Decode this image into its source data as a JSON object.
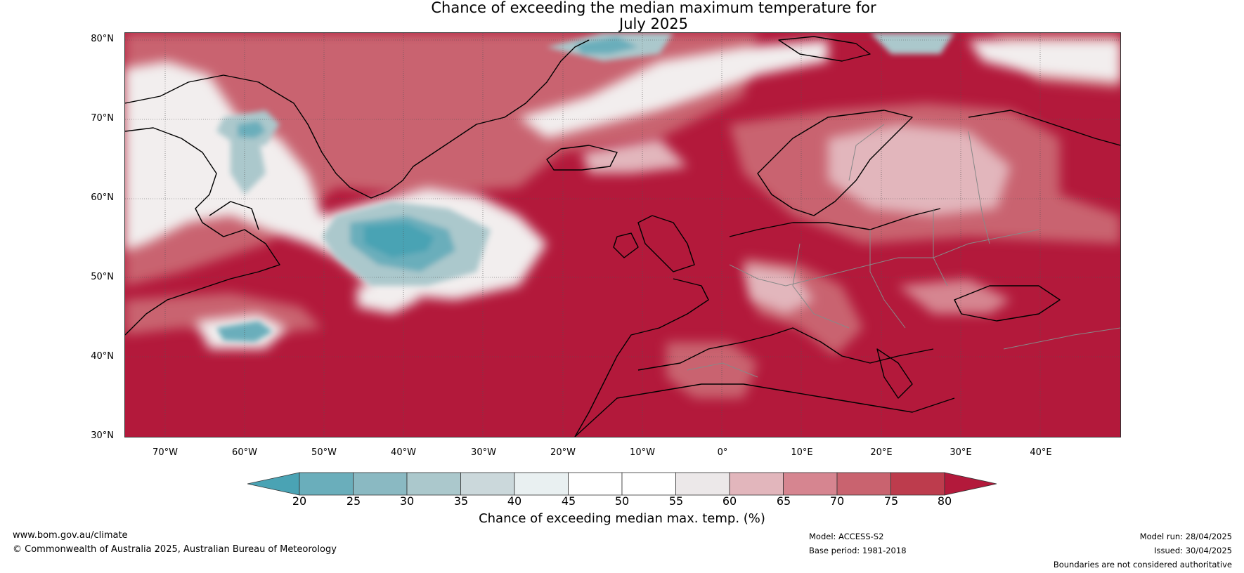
{
  "title": {
    "line1": "Chance of exceeding the median maximum temperature for",
    "line2": "July 2025"
  },
  "axes": {
    "lat_labels": [
      "80°N",
      "70°N",
      "60°N",
      "50°N",
      "40°N",
      "30°N"
    ],
    "lon_labels": [
      "70°W",
      "60°W",
      "50°W",
      "40°W",
      "30°W",
      "20°W",
      "10°W",
      "0°",
      "10°E",
      "20°E",
      "30°E",
      "40°E"
    ],
    "lat_range": [
      30,
      81
    ],
    "lon_range": [
      -75,
      50
    ]
  },
  "colorbar": {
    "title": "Chance of exceeding median max. temp. (%)",
    "ticks": [
      "20",
      "25",
      "30",
      "35",
      "40",
      "45",
      "50",
      "55",
      "60",
      "65",
      "70",
      "75",
      "80"
    ],
    "colors": [
      "#4aa3b4",
      "#6aaebb",
      "#8ab9c2",
      "#abc8cc",
      "#cbd8db",
      "#e9f0f1",
      "#ffffff",
      "#ffffff",
      "#ece8e9",
      "#e2b6bc",
      "#d68590",
      "#c9636f",
      "#bd3c4d",
      "#b3193b"
    ]
  },
  "map_colors": {
    "ocean_warm": "#b3193b",
    "ocean_mid": "#c9636f",
    "light_red": "#e2b6bc",
    "neutral": "#f2eeee",
    "cool_light": "#abc8cc",
    "cool": "#4aa3b4",
    "coast": "#000000",
    "border": "#888888"
  },
  "footer": {
    "url": "www.bom.gov.au/climate",
    "copyright": "© Commonwealth of Australia 2025, Australian Bureau of Meteorology",
    "model": "Model: ACCESS-S2",
    "base_period": "Base period: 1981-2018",
    "model_run": "Model run: 28/04/2025",
    "issued": "Issued: 30/04/2025",
    "disclaimer": "Boundaries are not considered authoritative"
  }
}
